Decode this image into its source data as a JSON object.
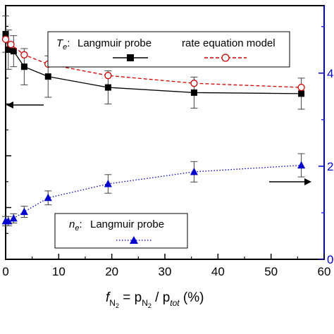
{
  "chart_data": {
    "type": "scatter",
    "x": [
      0,
      0.5,
      1,
      1.5,
      3.5,
      8,
      19.3,
      35.5,
      55.7
    ],
    "x_tick_labels": [
      "0",
      "10",
      "20",
      "30",
      "40",
      "50",
      "60"
    ],
    "xlim": [
      0,
      60
    ],
    "xlabel": {
      "f": "f",
      "f_sub": "N",
      "f_subsub": "2",
      "eq": " = p",
      "p_sub": "N",
      "p_subsub": "2",
      "slash": " / p",
      "tot": "tot",
      "unit": " (%)"
    },
    "right_tick_labels": [
      "4",
      "2",
      "0"
    ],
    "left_ylim": [
      0,
      4.9
    ],
    "right_ylim": [
      0,
      5.45
    ],
    "series": [
      {
        "legend_group": "Te",
        "name": "Langmuir probe",
        "axis": "left",
        "color": "#000000",
        "marker": "filled-square",
        "line": "solid",
        "x": [
          0,
          0.5,
          1.5,
          3.5,
          8,
          19.3,
          35.5,
          55.7
        ],
        "y": [
          4.35,
          4.05,
          4.02,
          3.72,
          3.53,
          3.32,
          3.22,
          3.2
        ],
        "err": [
          0.35,
          0.38,
          0.3,
          0.35,
          0.4,
          0.32,
          0.3,
          0.3
        ]
      },
      {
        "legend_group": "Te",
        "name": "rate equation model",
        "axis": "left",
        "color": "#cc0000",
        "marker": "open-circle",
        "line": "dashed",
        "x": [
          0,
          1,
          3.5,
          8,
          19.3,
          35.5,
          55.7
        ],
        "y": [
          4.25,
          4.15,
          3.95,
          3.77,
          3.55,
          3.4,
          3.32
        ],
        "err": []
      },
      {
        "legend_group": "ne",
        "name": "Langmuir probe",
        "axis": "right",
        "color": "#0000cc",
        "marker": "filled-triangle",
        "line": "dotted",
        "x": [
          0,
          0.5,
          1.5,
          3.5,
          8,
          19.3,
          35.5,
          55.7
        ],
        "y": [
          0.82,
          0.82,
          0.88,
          1.02,
          1.32,
          1.62,
          1.88,
          2.02
        ],
        "err": [
          0.1,
          0.1,
          0.1,
          0.12,
          0.15,
          0.2,
          0.22,
          0.25
        ]
      }
    ],
    "legend_te": {
      "symbol": "T",
      "sub": "e",
      "colon": ":",
      "entries": [
        "Langmuir probe",
        "rate equation model"
      ]
    },
    "legend_ne": {
      "symbol": "n",
      "sub": "e",
      "colon": ":",
      "entries": [
        "Langmuir probe"
      ]
    },
    "arrows": [
      {
        "points_to": "left-axis",
        "color": "#000000"
      },
      {
        "points_to": "right-axis",
        "color": "#000000"
      }
    ],
    "right_axis_color": "#0000cc",
    "grid": false
  }
}
